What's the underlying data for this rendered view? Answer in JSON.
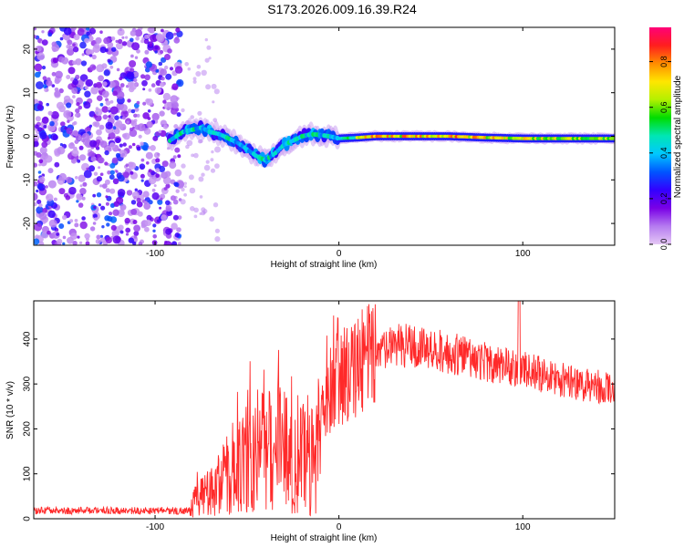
{
  "title": "S173.2026.009.16.39.R24",
  "chart_data": [
    {
      "type": "heatmap",
      "name": "spectrogram",
      "xlabel": "Height of straight line (km)",
      "ylabel": "Frequency (Hz)",
      "xlim": [
        -166,
        150
      ],
      "ylim": [
        -25,
        25
      ],
      "xticks": [
        "-100",
        "0",
        "100"
      ],
      "yticks": [
        "-20",
        "-10",
        "0",
        "10",
        "20"
      ],
      "ridge": {
        "x": [
          -92,
          -85,
          -80,
          -75,
          -70,
          -65,
          -60,
          -55,
          -50,
          -45,
          -40,
          -35,
          -30,
          -25,
          -20,
          -15,
          -10,
          -5,
          0,
          10,
          20,
          40,
          60,
          80,
          100,
          120,
          150
        ],
        "y": [
          -1,
          1,
          1.5,
          2,
          1,
          0.5,
          -0.5,
          -1.5,
          -3,
          -4.5,
          -5.5,
          -4,
          -2,
          -1,
          0,
          0.5,
          0.3,
          0,
          -0.5,
          -0.3,
          0,
          0,
          0,
          -0.3,
          -0.5,
          -0.5,
          -0.5
        ]
      },
      "colorbar": {
        "label": "Normalized spectral amplitude",
        "ticks": [
          "0.0",
          "0.2",
          "0.4",
          "0.6",
          "0.8"
        ],
        "range": [
          0,
          0.95
        ],
        "stops": [
          "#e5c8f5",
          "#b57bf0",
          "#7a00e6",
          "#3300ff",
          "#0055ff",
          "#00c8ff",
          "#00e6b4",
          "#00dc00",
          "#b4f000",
          "#ffe600",
          "#ff8c00",
          "#ff1e1e",
          "#ff0078"
        ]
      }
    },
    {
      "type": "line",
      "name": "snr",
      "xlabel": "Height of straight line (km)",
      "ylabel": "SNR (10 * v/v)",
      "xlim": [
        -166,
        150
      ],
      "ylim": [
        0,
        485
      ],
      "xticks": [
        "-100",
        "0",
        "100"
      ],
      "yticks": [
        "0",
        "100",
        "200",
        "300",
        "400"
      ],
      "color": "#ff2a2a",
      "envelope": {
        "x": [
          -166,
          -82,
          -78,
          -70,
          -60,
          -50,
          -40,
          -30,
          -20,
          -12,
          -8,
          0,
          10,
          20,
          30,
          40,
          50,
          60,
          70,
          80,
          90,
          100,
          110,
          120,
          130,
          140,
          150
        ],
        "y": [
          18,
          18,
          40,
          60,
          100,
          140,
          160,
          150,
          130,
          160,
          250,
          310,
          340,
          365,
          385,
          385,
          380,
          370,
          360,
          350,
          340,
          330,
          320,
          310,
          300,
          295,
          290
        ]
      }
    }
  ]
}
